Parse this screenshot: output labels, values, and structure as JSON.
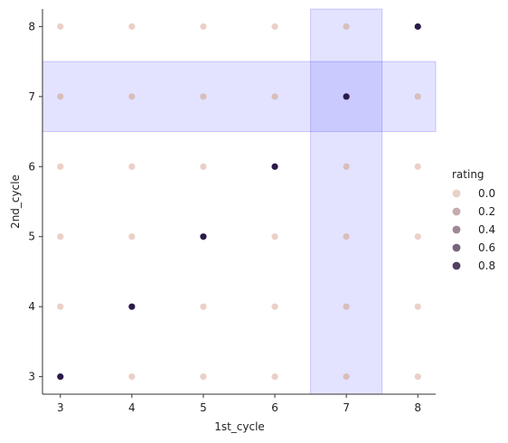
{
  "chart_data": {
    "type": "scatter",
    "title": "",
    "xlabel": "1st_cycle",
    "ylabel": "2nd_cycle",
    "xlim": [
      2.75,
      8.25
    ],
    "ylim": [
      2.75,
      8.25
    ],
    "xticks": [
      3,
      4,
      5,
      6,
      7,
      8
    ],
    "yticks": [
      3,
      4,
      5,
      6,
      7,
      8
    ],
    "grid": false,
    "legend": {
      "title": "rating",
      "placement": "right",
      "entries": [
        {
          "label": "0.0",
          "value": 0.0
        },
        {
          "label": "0.2",
          "value": 0.2
        },
        {
          "label": "0.4",
          "value": 0.4
        },
        {
          "label": "0.6",
          "value": 0.6
        },
        {
          "label": "0.8",
          "value": 0.8
        }
      ]
    },
    "colormap": {
      "low": "#ebd0c7",
      "high": "#2b1b4a"
    },
    "highlight": {
      "x": 7,
      "y": 7,
      "color": "#0000ff"
    },
    "x": [
      3,
      4,
      5,
      6,
      7,
      8,
      3,
      4,
      5,
      6,
      7,
      8,
      3,
      4,
      5,
      6,
      7,
      8,
      3,
      4,
      5,
      6,
      7,
      8,
      3,
      4,
      5,
      6,
      7,
      8,
      3,
      4,
      5,
      6,
      7,
      8
    ],
    "y": [
      8,
      8,
      8,
      8,
      8,
      8,
      7,
      7,
      7,
      7,
      7,
      7,
      6,
      6,
      6,
      6,
      6,
      6,
      5,
      5,
      5,
      5,
      5,
      5,
      4,
      4,
      4,
      4,
      4,
      4,
      3,
      3,
      3,
      3,
      3,
      3
    ],
    "rating": [
      0.0,
      0.0,
      0.0,
      0.0,
      0.1,
      1.0,
      0.1,
      0.1,
      0.1,
      0.1,
      1.0,
      0.1,
      0.0,
      0.0,
      0.0,
      1.0,
      0.1,
      0.0,
      0.0,
      0.0,
      1.0,
      0.0,
      0.1,
      0.0,
      0.0,
      1.0,
      0.0,
      0.0,
      0.1,
      0.0,
      1.0,
      0.0,
      0.0,
      0.0,
      0.1,
      0.0
    ]
  }
}
